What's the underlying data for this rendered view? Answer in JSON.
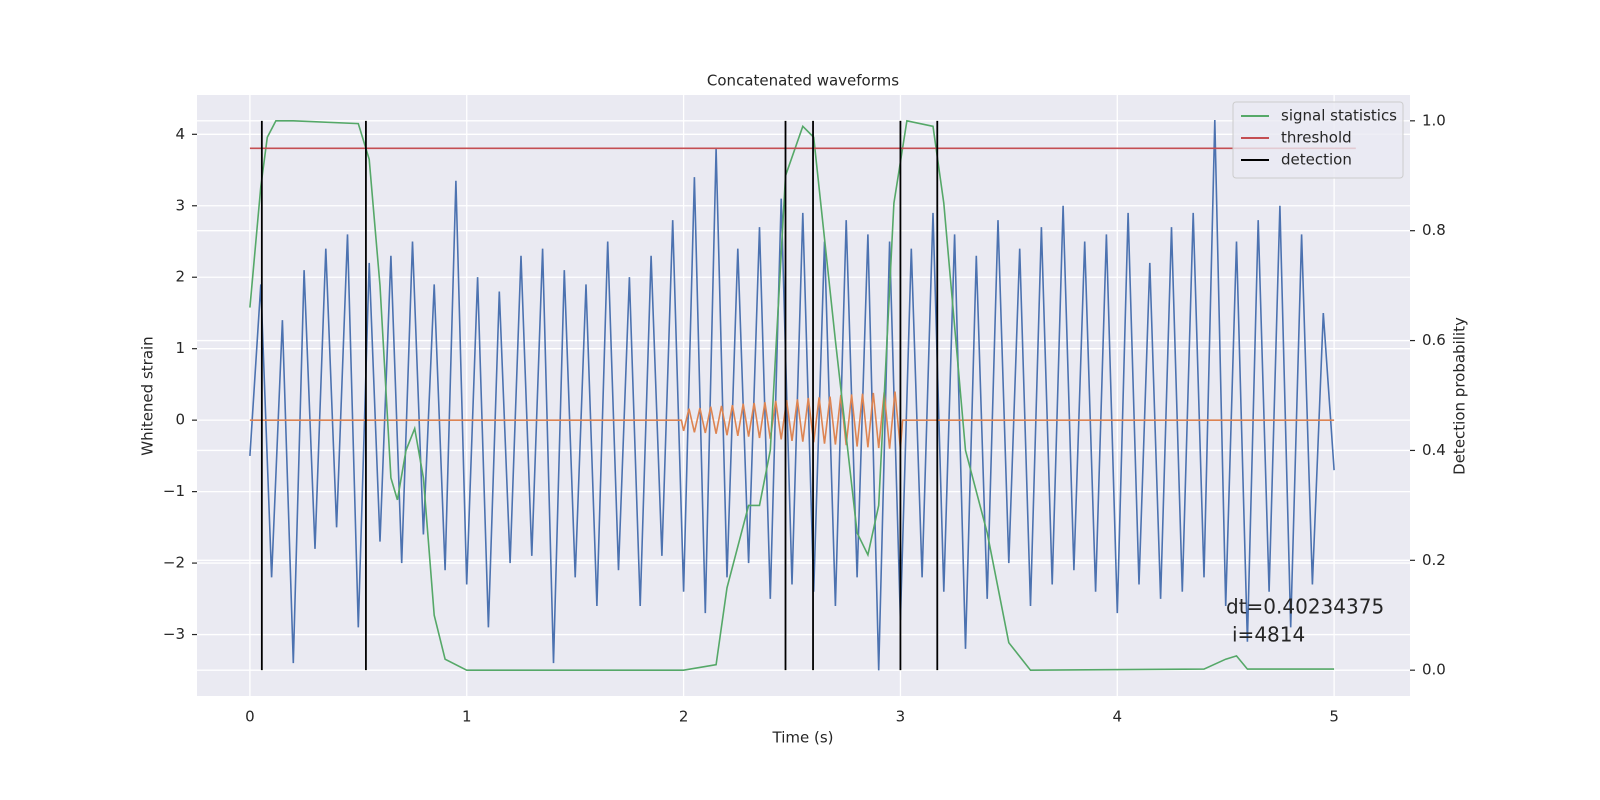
{
  "chart_data": {
    "type": "line",
    "title": "Concatenated waveforms",
    "x_label": "Time (s)",
    "y_label": "Whitened strain",
    "y2_label": "Detection probability",
    "xlim": [
      -0.244,
      5.35
    ],
    "ylim": [
      -3.86,
      4.55
    ],
    "y2lim": [
      -0.047,
      1.047
    ],
    "xticks": [
      0,
      1,
      2,
      3,
      4,
      5
    ],
    "yticks": [
      {
        "value": -3,
        "label": "−3"
      },
      {
        "value": -2,
        "label": "−2"
      },
      {
        "value": -1,
        "label": "−1"
      },
      0,
      1,
      2,
      3,
      4
    ],
    "y2ticks": [
      {
        "value": 0,
        "label": "0.0"
      },
      0.2,
      0.4,
      0.6,
      0.8,
      {
        "value": 1,
        "label": "1.0"
      }
    ],
    "grid": true,
    "legend": "upper right",
    "annotations": [
      "dt=0.40234375",
      "i=4814"
    ],
    "series": [
      {
        "name": null,
        "color": "#4c72b0",
        "axis": "y",
        "x": [
          0,
          0.05,
          0.1,
          0.15,
          0.2,
          0.25,
          0.3,
          0.35,
          0.4,
          0.45,
          0.5,
          0.55,
          0.6,
          0.65,
          0.7,
          0.75,
          0.8,
          0.85,
          0.9,
          0.95,
          1,
          1.05,
          1.1,
          1.15,
          1.2,
          1.25,
          1.3,
          1.35,
          1.4,
          1.45,
          1.5,
          1.55,
          1.6,
          1.65,
          1.7,
          1.75,
          1.8,
          1.85,
          1.9,
          1.95,
          2,
          2.05,
          2.1,
          2.15,
          2.2,
          2.25,
          2.3,
          2.35,
          2.4,
          2.45,
          2.5,
          2.55,
          2.6,
          2.65,
          2.7,
          2.75,
          2.8,
          2.85,
          2.9,
          2.95,
          3,
          3.05,
          3.1,
          3.15,
          3.2,
          3.25,
          3.3,
          3.35,
          3.4,
          3.45,
          3.5,
          3.55,
          3.6,
          3.65,
          3.7,
          3.75,
          3.8,
          3.85,
          3.9,
          3.95,
          4,
          4.05,
          4.1,
          4.15,
          4.2,
          4.25,
          4.3,
          4.35,
          4.4,
          4.45,
          4.5,
          4.55,
          4.6,
          4.65,
          4.7,
          4.75,
          4.8,
          4.85,
          4.9,
          4.95,
          5
        ],
        "values": [
          -0.5,
          1.9,
          -2.2,
          1.4,
          -3.4,
          2.1,
          -1.8,
          2.4,
          -1.5,
          2.6,
          -2.9,
          2.2,
          -1.7,
          2.3,
          -2.0,
          2.5,
          -1.6,
          1.9,
          -2.1,
          3.35,
          -2.3,
          2.0,
          -2.9,
          1.8,
          -2.0,
          2.3,
          -1.9,
          2.4,
          -3.4,
          2.1,
          -2.2,
          1.9,
          -2.6,
          2.5,
          -2.1,
          2.0,
          -2.6,
          2.3,
          -1.9,
          2.8,
          -2.4,
          3.4,
          -2.7,
          3.8,
          -2.2,
          2.4,
          -2.0,
          2.7,
          -2.5,
          3.1,
          -2.3,
          2.9,
          -2.4,
          2.5,
          -2.6,
          2.8,
          -2.2,
          2.6,
          -3.5,
          2.5,
          -2.8,
          2.4,
          -2.2,
          2.9,
          -2.4,
          2.6,
          -3.2,
          2.3,
          -2.5,
          2.8,
          -2.0,
          2.4,
          -2.6,
          2.7,
          -2.3,
          3.0,
          -2.1,
          2.5,
          -2.4,
          2.6,
          -2.7,
          2.9,
          -2.3,
          2.2,
          -2.5,
          2.7,
          -2.4,
          2.9,
          -2.2,
          4.2,
          -2.6,
          2.5,
          -3.1,
          2.8,
          -2.4,
          3.0,
          -2.9,
          2.6,
          -2.3,
          1.5,
          -0.7
        ]
      },
      {
        "name": null,
        "color": "#dd8452",
        "axis": "y",
        "x": [
          0,
          1.99,
          2,
          2.025,
          2.05,
          2.075,
          2.1,
          2.125,
          2.15,
          2.175,
          2.2,
          2.225,
          2.25,
          2.275,
          2.3,
          2.325,
          2.35,
          2.375,
          2.4,
          2.425,
          2.45,
          2.475,
          2.5,
          2.525,
          2.55,
          2.575,
          2.6,
          2.625,
          2.65,
          2.675,
          2.7,
          2.725,
          2.75,
          2.775,
          2.8,
          2.825,
          2.85,
          2.875,
          2.9,
          2.925,
          2.95,
          2.975,
          3,
          3.01,
          5
        ],
        "values": [
          0,
          0,
          -0.15,
          0.16,
          -0.17,
          0.17,
          -0.18,
          0.19,
          -0.19,
          0.2,
          -0.21,
          0.21,
          -0.22,
          0.23,
          -0.23,
          0.24,
          -0.25,
          0.25,
          -0.26,
          0.27,
          -0.27,
          0.28,
          -0.29,
          0.29,
          -0.3,
          0.31,
          -0.31,
          0.32,
          -0.33,
          0.33,
          -0.34,
          0.35,
          -0.35,
          0.36,
          -0.37,
          0.37,
          -0.38,
          0.38,
          -0.39,
          0.39,
          -0.4,
          0.4,
          -0.4,
          0,
          0
        ]
      },
      {
        "name": "signal statistics",
        "color": "#55a868",
        "axis": "y2",
        "x": [
          0,
          0.05,
          0.08,
          0.12,
          0.2,
          0.5,
          0.55,
          0.6,
          0.65,
          0.68,
          0.72,
          0.76,
          0.8,
          0.85,
          0.9,
          1,
          2,
          2.15,
          2.2,
          2.3,
          2.35,
          2.4,
          2.47,
          2.55,
          2.6,
          2.7,
          2.8,
          2.85,
          2.9,
          2.97,
          3.03,
          3.15,
          3.2,
          3.3,
          3.4,
          3.5,
          3.6,
          4.4,
          4.5,
          4.55,
          4.6,
          5
        ],
        "values": [
          0.66,
          0.88,
          0.97,
          1.0,
          1.0,
          0.995,
          0.93,
          0.7,
          0.35,
          0.31,
          0.4,
          0.44,
          0.35,
          0.1,
          0.02,
          0,
          0,
          0.01,
          0.15,
          0.3,
          0.3,
          0.4,
          0.9,
          0.99,
          0.97,
          0.6,
          0.25,
          0.21,
          0.3,
          0.85,
          1.0,
          0.99,
          0.85,
          0.4,
          0.25,
          0.05,
          0.0,
          0.002,
          0.02,
          0.026,
          0.002,
          0.002
        ]
      },
      {
        "name": "threshold",
        "color": "#c44e52",
        "axis": "y2",
        "x": [
          0,
          5.1
        ],
        "values": [
          0.95,
          0.95
        ]
      },
      {
        "name": "detection",
        "color": "#000000",
        "axis": "y2",
        "type": "vlines",
        "x": [
          0.055,
          0.535,
          2.47,
          2.597,
          3.0,
          3.17
        ],
        "span": [
          0,
          1
        ]
      }
    ]
  }
}
